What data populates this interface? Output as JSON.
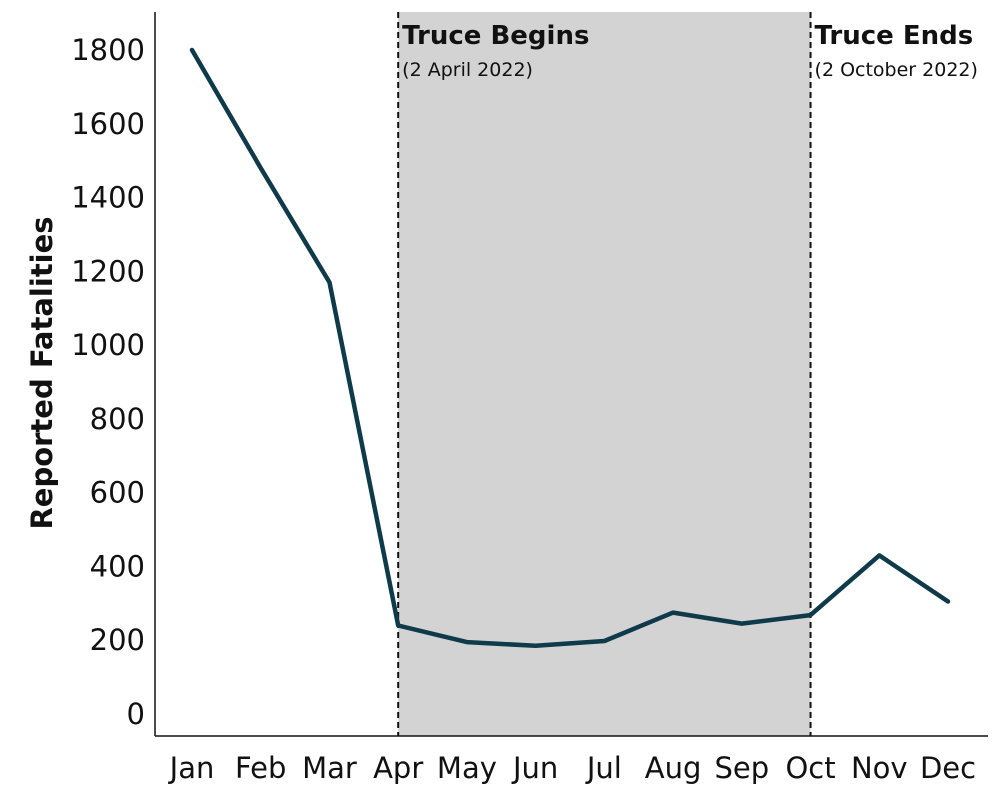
{
  "chart_data": {
    "type": "line",
    "title": "",
    "xlabel": "",
    "ylabel": "Reported Fatalities",
    "categories": [
      "Jan",
      "Feb",
      "Mar",
      "Apr",
      "May",
      "Jun",
      "Jul",
      "Aug",
      "Sep",
      "Oct",
      "Nov",
      "Dec"
    ],
    "series": [
      {
        "values": [
          1800,
          1480,
          1170,
          240,
          195,
          185,
          198,
          275,
          245,
          268,
          430,
          305
        ]
      }
    ],
    "yticks": [
      "1800",
      "1600",
      "1400",
      "1200",
      "1000",
      "800",
      "600",
      "400",
      "200",
      "0"
    ],
    "ylim": [
      -60,
      1900
    ],
    "grid": false,
    "legend": "none",
    "shaded_period": {
      "from": "Apr",
      "to": "Oct"
    },
    "annotations": [
      {
        "title": "Truce Begins",
        "subtitle": "(2 April 2022)",
        "at": "Apr"
      },
      {
        "title": "Truce Ends",
        "subtitle": "(2 October 2022)",
        "at": "Oct"
      }
    ],
    "colors": {
      "line": "#0f3a4a",
      "shade": "#d3d3d3",
      "axis": "#111111"
    }
  }
}
